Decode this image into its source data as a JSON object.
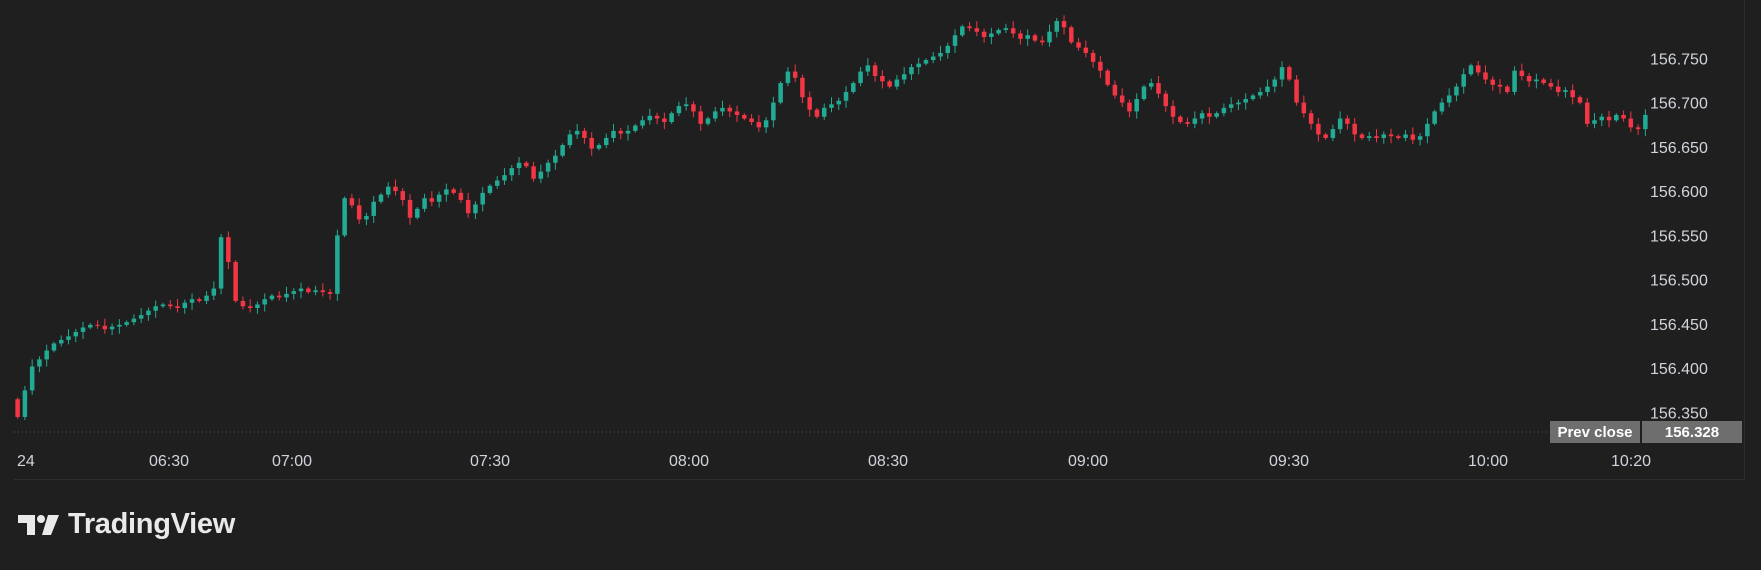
{
  "chart_data": {
    "type": "candlestick",
    "x_tick_labels": [
      "24",
      "06:30",
      "07:00",
      "07:30",
      "08:00",
      "08:30",
      "09:00",
      "09:30",
      "10:00",
      "10:20"
    ],
    "y_tick_labels": [
      "156.350",
      "156.400",
      "156.450",
      "156.500",
      "156.550",
      "156.600",
      "156.650",
      "156.700",
      "156.750"
    ],
    "ylim": [
      156.328,
      156.8
    ],
    "prev_close": {
      "label": "Prev close",
      "value": "156.328"
    },
    "grid": false,
    "colors": {
      "up": "#22ab94",
      "down": "#f23645",
      "background": "#1f1f1f",
      "text": "#d1d4dc",
      "marker_bg": "#6e6e6e"
    },
    "closes": [
      156.345,
      156.375,
      156.402,
      156.41,
      156.42,
      156.428,
      156.432,
      156.436,
      156.441,
      156.446,
      156.449,
      156.448,
      156.444,
      156.447,
      156.449,
      156.452,
      156.456,
      156.46,
      156.465,
      156.47,
      156.472,
      156.47,
      156.468,
      156.474,
      156.478,
      156.476,
      156.482,
      156.49,
      156.548,
      156.52,
      156.476,
      156.47,
      156.468,
      156.472,
      156.478,
      156.482,
      156.48,
      156.484,
      156.487,
      156.49,
      156.486,
      156.488,
      156.486,
      156.484,
      156.55,
      156.592,
      156.584,
      156.568,
      156.572,
      156.588,
      156.596,
      156.605,
      156.6,
      156.59,
      156.57,
      156.58,
      156.592,
      156.588,
      156.596,
      156.602,
      156.598,
      156.59,
      156.575,
      156.585,
      156.598,
      156.606,
      156.612,
      156.618,
      156.626,
      156.632,
      156.628,
      156.614,
      156.622,
      156.632,
      156.64,
      156.652,
      156.664,
      156.668,
      156.66,
      156.648,
      156.652,
      156.66,
      156.668,
      156.665,
      156.668,
      156.674,
      156.68,
      156.685,
      156.682,
      156.678,
      156.688,
      156.696,
      156.698,
      156.69,
      156.676,
      156.682,
      156.69,
      156.694,
      156.69,
      156.686,
      156.682,
      156.678,
      156.672,
      156.68,
      156.7,
      156.722,
      156.735,
      156.728,
      156.706,
      156.692,
      156.684,
      156.694,
      156.698,
      156.702,
      156.712,
      156.722,
      156.735,
      156.742,
      156.73,
      156.724,
      156.718,
      156.726,
      156.732,
      156.74,
      156.744,
      156.748,
      156.752,
      156.756,
      156.764,
      156.776,
      156.786,
      156.784,
      156.78,
      156.774,
      156.778,
      156.782,
      156.784,
      156.778,
      156.772,
      156.776,
      156.77,
      156.768,
      156.78,
      156.792,
      156.785,
      156.768,
      156.762,
      156.756,
      156.746,
      156.736,
      156.72,
      156.708,
      156.7,
      156.69,
      156.704,
      156.718,
      156.722,
      156.71,
      156.696,
      156.684,
      156.678,
      156.676,
      156.682,
      156.688,
      156.684,
      156.688,
      156.694,
      156.698,
      156.7,
      156.704,
      156.708,
      156.712,
      156.718,
      156.726,
      156.74,
      156.726,
      156.7,
      156.688,
      156.676,
      156.664,
      156.66,
      156.67,
      156.682,
      156.676,
      156.664,
      156.66,
      156.662,
      156.66,
      156.664,
      156.662,
      156.66,
      156.664,
      156.658,
      156.662,
      156.676,
      156.69,
      156.7,
      156.708,
      156.718,
      156.732,
      156.742,
      156.734,
      156.726,
      156.72,
      156.718,
      156.712,
      156.736,
      156.73,
      156.724,
      156.726,
      156.722,
      156.718,
      156.712,
      156.714,
      156.706,
      156.7,
      156.676,
      156.68,
      156.684,
      156.68,
      156.686,
      156.682,
      156.672,
      156.67,
      156.686
    ]
  },
  "brand": {
    "name": "TradingView"
  }
}
